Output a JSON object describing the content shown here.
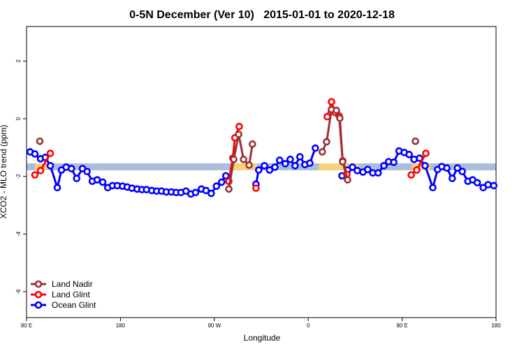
{
  "chart_data": {
    "type": "line",
    "title": "0-5N December (Ver 10)   2015-01-01 to 2020-12-18",
    "x_label": "Longitude",
    "y_label": "XCO2 - MLO trend (ppm)",
    "xlim": [
      90,
      540
    ],
    "ylim": [
      -6.9,
      3.2
    ],
    "xticks": [
      {
        "value": 90,
        "label": "90 E"
      },
      {
        "value": 180,
        "label": "180"
      },
      {
        "value": 270,
        "label": "90 W"
      },
      {
        "value": 360,
        "label": "0"
      },
      {
        "value": 450,
        "label": "90 E"
      },
      {
        "value": 540,
        "label": "180"
      }
    ],
    "yticks": [
      2,
      0,
      -2,
      -4,
      -6
    ],
    "legend": "bottom-left",
    "series": [
      {
        "name": "Land Nadir",
        "color": "#993333",
        "x": [
          102.7,
          200,
          283.9,
          288.6,
          293.3,
          298,
          303.3,
          306.5,
          340,
          373.5,
          377.6,
          382.3,
          387,
          390.3,
          393,
          397.7,
          430,
          462.7
        ],
        "values": [
          -0.78,
          null,
          -2.44,
          -1.41,
          -0.54,
          -1.41,
          -1.61,
          -0.88,
          null,
          -1.15,
          -0.8,
          0.32,
          0.29,
          0.02,
          -1.49,
          -2.12,
          null,
          -0.78
        ]
      },
      {
        "name": "Land Glint",
        "color": "#ff0000",
        "x": [
          98,
          103.4,
          112.8,
          200,
          283.9,
          287.7,
          289.7,
          293.8,
          300,
          309.9,
          340,
          378.2,
          382.3,
          385.6,
          389.6,
          393,
          397,
          430,
          458.7,
          464,
          472.7
        ],
        "values": [
          -1.95,
          -1.8,
          -1.2,
          null,
          -2.17,
          -1.37,
          -0.66,
          -0.27,
          null,
          -2.41,
          null,
          0.07,
          0.59,
          0.22,
          0.1,
          -1.46,
          -1.93,
          null,
          -1.95,
          -1.78,
          -1.2
        ]
      },
      {
        "name": "Ocean Glint",
        "color": "#0000ff",
        "x": [
          93.4,
          98,
          103.4,
          108,
          112.8,
          119.5,
          123.5,
          128,
          133,
          138,
          143.6,
          148,
          153,
          157.7,
          163,
          167.8,
          172.4,
          177,
          182,
          186.5,
          191,
          196,
          200.6,
          205,
          210,
          214.7,
          219.4,
          224,
          228.8,
          233.4,
          238,
          242.8,
          247.5,
          252,
          257.6,
          262,
          267,
          272,
          277,
          281,
          295,
          309.9,
          312.5,
          318,
          323,
          328,
          332.6,
          338,
          342.7,
          347.4,
          352,
          356.8,
          361.5,
          366.8,
          380,
          392.3,
          397.7,
          402.4,
          407,
          412.4,
          417,
          421.8,
          427,
          432.5,
          437,
          442,
          447,
          452,
          456.7,
          461.4,
          466.7,
          472,
          479.4,
          484,
          488,
          492.8,
          498,
          503,
          507.6,
          513,
          517.6,
          522,
          527.7,
          532.4,
          537.8
        ],
        "values": [
          -1.15,
          -1.22,
          -1.39,
          -1.34,
          -1.63,
          -2.39,
          -1.78,
          -1.68,
          -1.73,
          -2.07,
          -1.73,
          -1.83,
          -2.17,
          -2.12,
          -2.2,
          -2.39,
          -2.32,
          -2.32,
          -2.34,
          -2.37,
          -2.41,
          -2.44,
          -2.46,
          -2.46,
          -2.49,
          -2.51,
          -2.51,
          -2.54,
          -2.54,
          -2.56,
          -2.56,
          -2.51,
          -2.61,
          -2.56,
          -2.44,
          -2.49,
          -2.59,
          -2.34,
          -2.2,
          -1.98,
          null,
          -2.27,
          -1.78,
          -1.63,
          -1.78,
          -1.68,
          -1.44,
          -1.56,
          -1.41,
          -1.63,
          -1.32,
          -1.59,
          -1.54,
          -1.02,
          null,
          -1.98,
          -1.78,
          -1.68,
          -1.8,
          -1.85,
          -1.76,
          -1.88,
          -1.88,
          -1.63,
          -1.49,
          -1.51,
          -1.12,
          -1.17,
          -1.24,
          -1.41,
          -1.37,
          -1.63,
          -2.39,
          -1.76,
          -1.66,
          -1.71,
          -2.07,
          -1.71,
          -1.83,
          -2.17,
          -2.12,
          -2.22,
          -2.39,
          -2.29,
          -2.32
        ]
      }
    ]
  }
}
